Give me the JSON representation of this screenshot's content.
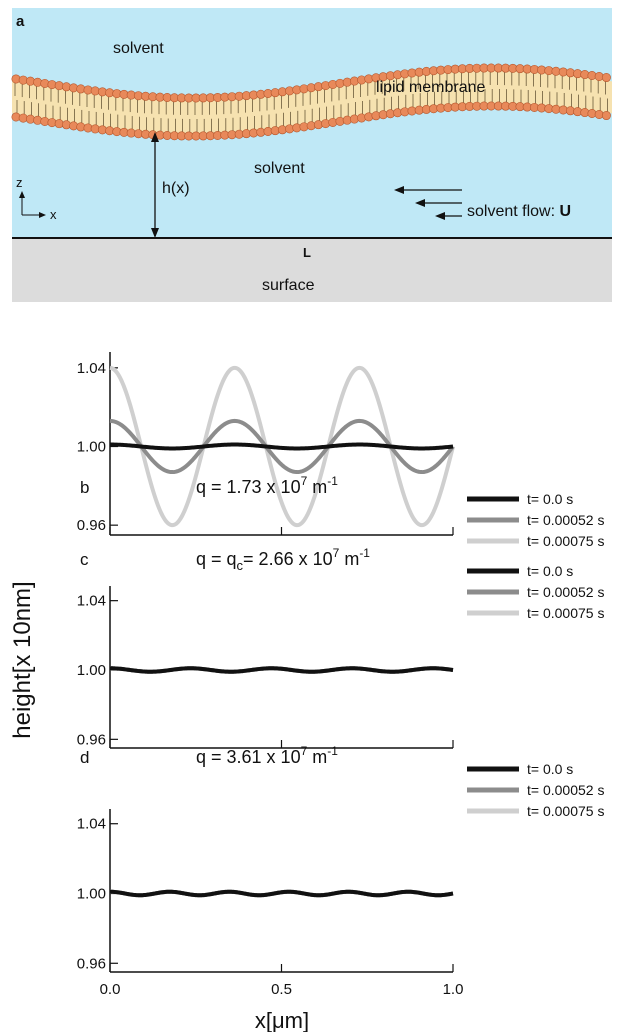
{
  "schematic": {
    "panel_label": "a",
    "top_solvent": "solvent",
    "membrane_label": "lipid membrane",
    "bottom_solvent": "solvent",
    "height_label": "h(x)",
    "axis_z": "z",
    "axis_x": "x",
    "flow_label": "solvent flow:",
    "flow_symbol": "U",
    "length_label": "L",
    "surface_label": "surface",
    "colors": {
      "solvent": "#bfe8f6",
      "surface": "#dcdcdc",
      "lipid_head": "#e8895a",
      "lipid_tail": "#f6e2b0"
    }
  },
  "figure": {
    "ylabel": "height[x 10nm]",
    "xlabel": "x[μm]"
  },
  "chart_data": [
    {
      "type": "line",
      "panel_label": "b",
      "title": "q = 1.73 x 10",
      "title_sup": "7",
      "title_unit": " m",
      "title_unit_sup": "-1",
      "xlim": [
        0.0,
        1.0
      ],
      "ylim": [
        0.955,
        1.045
      ],
      "yticks": [
        "1.04",
        "1.00",
        "0.96"
      ],
      "ytick_values": [
        1.04,
        1.0,
        0.96
      ],
      "xticks": [
        0.0,
        0.5,
        1.0
      ],
      "xtick_labels": [],
      "wave_periods": 2.75,
      "series": [
        {
          "name": "t= 0.0 s",
          "amplitude": 0.001,
          "color": "#111111"
        },
        {
          "name": "t= 0.00052 s",
          "amplitude": 0.013,
          "color": "#8c8c8c"
        },
        {
          "name": "t= 0.00075 s",
          "amplitude": 0.04,
          "color": "#cfcfcf"
        }
      ]
    },
    {
      "type": "line",
      "panel_label": "c",
      "title": "q = q",
      "title_sub": "c",
      "title_rest": "= 2.66 x 10",
      "title_sup": "7",
      "title_unit": " m",
      "title_unit_sup": "-1",
      "xlim": [
        0.0,
        1.0
      ],
      "ylim": [
        0.955,
        1.045
      ],
      "yticks": [
        "1.04",
        "1.00",
        "0.96"
      ],
      "ytick_values": [
        1.04,
        1.0,
        0.96
      ],
      "xticks": [
        0.0,
        0.5,
        1.0
      ],
      "xtick_labels": [],
      "wave_periods": 4.25,
      "series": [
        {
          "name": "t= 0.0 s",
          "amplitude": 0.001,
          "color": "#111111"
        },
        {
          "name": "t= 0.00052 s",
          "amplitude": 0.001,
          "color": "#8c8c8c"
        },
        {
          "name": "t= 0.00075 s",
          "amplitude": 0.001,
          "color": "#cfcfcf"
        }
      ]
    },
    {
      "type": "line",
      "panel_label": "d",
      "title": "q = 3.61 x 10",
      "title_sup": "7",
      "title_unit": " m",
      "title_unit_sup": "-1",
      "xlim": [
        0.0,
        1.0
      ],
      "ylim": [
        0.955,
        1.045
      ],
      "yticks": [
        "1.04",
        "1.00",
        "0.96"
      ],
      "ytick_values": [
        1.04,
        1.0,
        0.96
      ],
      "xticks": [
        0.0,
        0.5,
        1.0
      ],
      "xtick_labels": [
        "0.0",
        "0.5",
        "1.0"
      ],
      "wave_periods": 5.75,
      "series": [
        {
          "name": "t= 0.0 s",
          "amplitude": 0.001,
          "color": "#111111"
        },
        {
          "name": "t= 0.00052 s",
          "amplitude": 0.001,
          "color": "#8c8c8c"
        },
        {
          "name": "t= 0.00075 s",
          "amplitude": 0.001,
          "color": "#cfcfcf"
        }
      ]
    }
  ]
}
